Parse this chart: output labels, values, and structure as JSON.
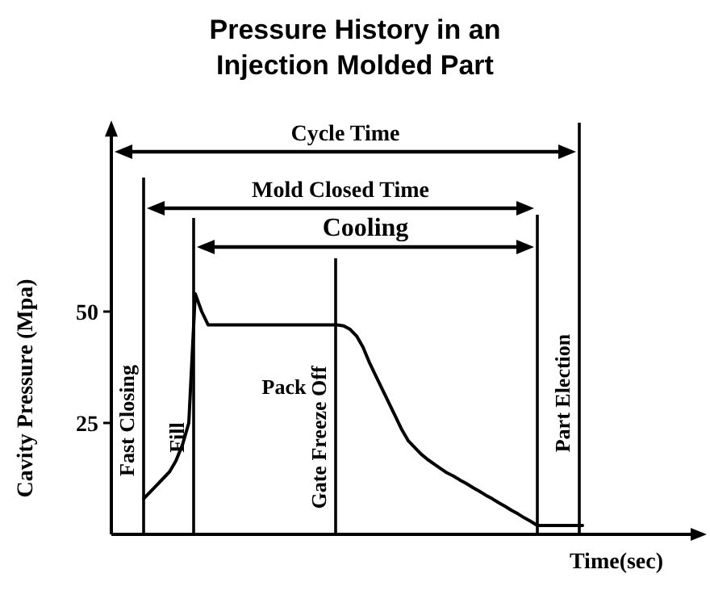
{
  "chart_data": {
    "type": "line",
    "title": "Pressure History in an\nInjection Molded Part",
    "xlabel": "Time(sec)",
    "ylabel": "Cavity Pressure (Mpa)",
    "categories": [
      null,
      null,
      null,
      null,
      null,
      null,
      null,
      null,
      null,
      null,
      null,
      null,
      null,
      null,
      null,
      null,
      null,
      null,
      null,
      null,
      null,
      null,
      null,
      null,
      null,
      null,
      null,
      null,
      null,
      null,
      null,
      null,
      null,
      null,
      null,
      null,
      null,
      null,
      null,
      null,
      null,
      null,
      null,
      null,
      null,
      null,
      null,
      null,
      null,
      null,
      null,
      null,
      null,
      null,
      null,
      null,
      null,
      null,
      null,
      null,
      null,
      null,
      null,
      null,
      null,
      null,
      null,
      null,
      null,
      null,
      null,
      null,
      null,
      null,
      null,
      null,
      null,
      null,
      null,
      null,
      null,
      null,
      null,
      null,
      null,
      null,
      null,
      null,
      null,
      null,
      null
    ],
    "series": [
      {
        "color": "#000000",
        "values": [
          null,
          null,
          null,
          null,
          null,
          8,
          9.5,
          11,
          12.5,
          14,
          16.5,
          20,
          25,
          54,
          50,
          47,
          47,
          47,
          47,
          47,
          47,
          47,
          47,
          47,
          47,
          47,
          47,
          47,
          47,
          47,
          47,
          47,
          47,
          47,
          47,
          47,
          46.8,
          46,
          44.5,
          42,
          38.5,
          35.5,
          32.5,
          29.5,
          26.5,
          23.5,
          21,
          19.5,
          18,
          16.8,
          15.8,
          14.8,
          13.8,
          13.1,
          12.2,
          11.4,
          10.5,
          9.7,
          8.8,
          8,
          7.1,
          6.3,
          5.4,
          4.6,
          3.7,
          2.9,
          2,
          2,
          2,
          2,
          2,
          2,
          2,
          2,
          null,
          null,
          null,
          null,
          null,
          null,
          null,
          null,
          null,
          null,
          null,
          null,
          null,
          null,
          null,
          null,
          null
        ]
      }
    ],
    "ylim": [
      0,
      90
    ],
    "yticks": [
      25,
      50
    ],
    "line_style": "solid",
    "annotations": [
      "Cycle Time",
      "Mold Closed Time",
      "Cooling",
      "Fast Closing",
      "Fill",
      "Pack",
      "Gate Freeze Off",
      "Part Election"
    ]
  }
}
